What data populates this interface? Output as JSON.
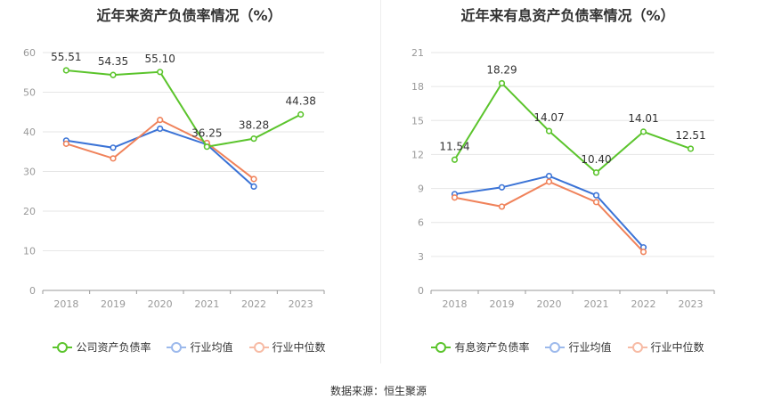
{
  "source": "数据来源：恒生聚源",
  "colors": {
    "company": "#5bc42c",
    "avg": "#3b73d6",
    "median": "#f0825a",
    "grid": "#e6e6e6",
    "axis": "#999999"
  },
  "chart_data": [
    {
      "type": "line",
      "title": "近年来资产负债率情况（%）",
      "categories": [
        "2018",
        "2019",
        "2020",
        "2021",
        "2022",
        "2023"
      ],
      "ylim": [
        0,
        60
      ],
      "yticks": [
        0,
        10,
        20,
        30,
        40,
        50,
        60
      ],
      "series": [
        {
          "name": "公司资产负债率",
          "key": "company",
          "values": [
            55.51,
            54.35,
            55.1,
            36.25,
            38.28,
            44.38
          ],
          "labels": true
        },
        {
          "name": "行业均值",
          "key": "avg",
          "values": [
            37.8,
            36.0,
            40.8,
            36.8,
            26.2,
            null
          ],
          "labels": false
        },
        {
          "name": "行业中位数",
          "key": "median",
          "values": [
            37.0,
            33.3,
            43.0,
            37.2,
            28.1,
            null
          ],
          "labels": false
        }
      ]
    },
    {
      "type": "line",
      "title": "近年来有息资产负债率情况（%）",
      "categories": [
        "2018",
        "2019",
        "2020",
        "2021",
        "2022",
        "2023"
      ],
      "ylim": [
        0,
        21
      ],
      "yticks": [
        0,
        3,
        6,
        9,
        12,
        15,
        18,
        21
      ],
      "series": [
        {
          "name": "有息资产负债率",
          "key": "company",
          "values": [
            11.54,
            18.29,
            14.07,
            10.4,
            14.01,
            12.51
          ],
          "labels": true
        },
        {
          "name": "行业均值",
          "key": "avg",
          "values": [
            8.5,
            9.1,
            10.1,
            8.4,
            3.8,
            null
          ],
          "labels": false
        },
        {
          "name": "行业中位数",
          "key": "median",
          "values": [
            8.2,
            7.4,
            9.6,
            7.8,
            3.4,
            null
          ],
          "labels": false
        }
      ]
    }
  ]
}
